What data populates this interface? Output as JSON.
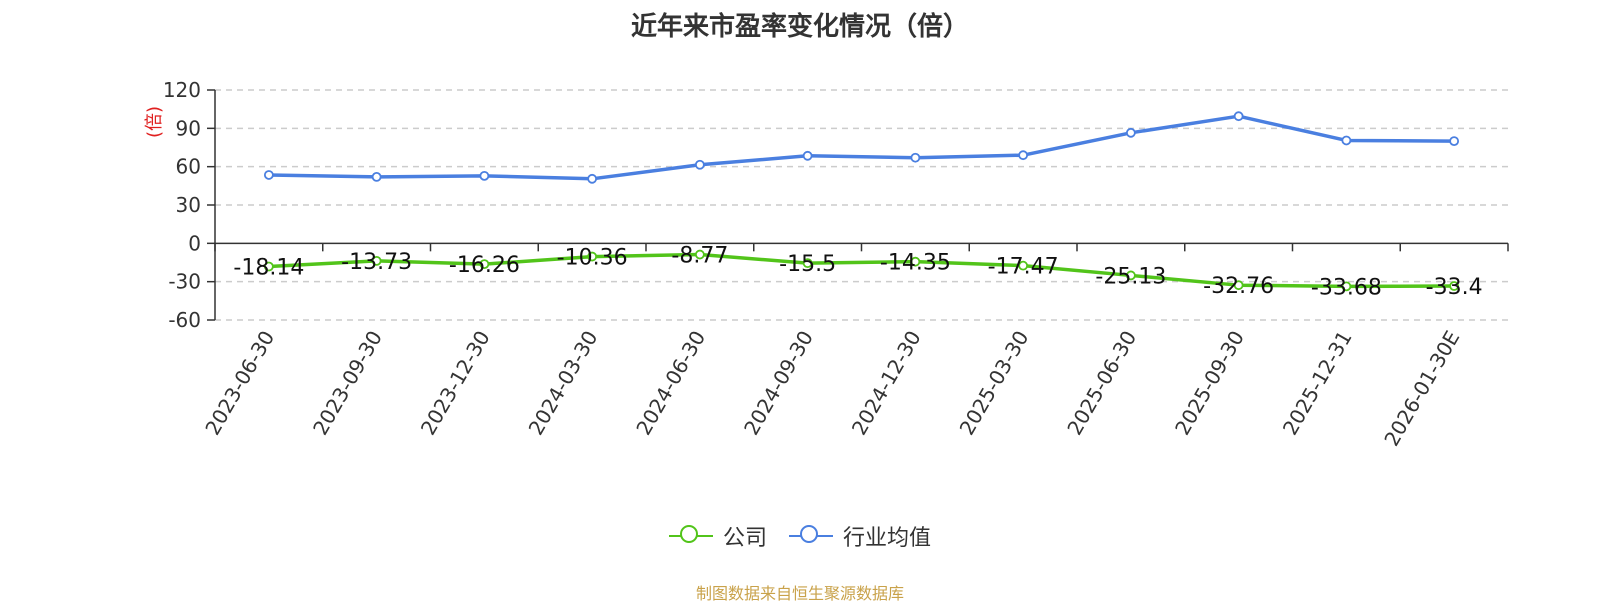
{
  "chart_data": {
    "type": "line",
    "title": "近年来市盈率变化情况（倍）",
    "ylabel": "(倍)",
    "xlabel": "",
    "categories": [
      "2023-06-30",
      "2023-09-30",
      "2023-12-30",
      "2024-03-30",
      "2024-06-30",
      "2024-09-30",
      "2024-12-30",
      "2025-03-30",
      "2025-06-30",
      "2025-09-30",
      "2025-12-31",
      "2026-01-30E"
    ],
    "ylim": [
      -60,
      120
    ],
    "yticks": [
      120,
      90,
      60,
      30,
      0,
      -30,
      -60
    ],
    "grid": true,
    "legend_position": "bottom",
    "series": [
      {
        "name": "公司",
        "color": "#52c41a",
        "values": [
          -18.14,
          -13.73,
          -16.26,
          -10.36,
          -8.77,
          -15.5,
          -14.35,
          -17.47,
          -25.13,
          -32.76,
          -33.68,
          -33.4
        ],
        "labels": [
          "-18.14",
          "-13.73",
          "-16.26",
          "-10.36",
          "-8.77",
          "-15.5",
          "-14.35",
          "-17.47",
          "-25.13",
          "-32.76",
          "-33.68",
          "-33.4"
        ]
      },
      {
        "name": "行业均值",
        "color": "#4a7fe0",
        "values": [
          53.5,
          52,
          52.8,
          50.5,
          61.5,
          68.5,
          67,
          69,
          86.5,
          99.5,
          80.5,
          80
        ]
      }
    ]
  },
  "source_text": "制图数据来自恒生聚源数据库",
  "colors": {
    "axis": "#333333",
    "grid": "#cccccc",
    "ylabel": "#e02020",
    "source": "#c9a24a"
  }
}
